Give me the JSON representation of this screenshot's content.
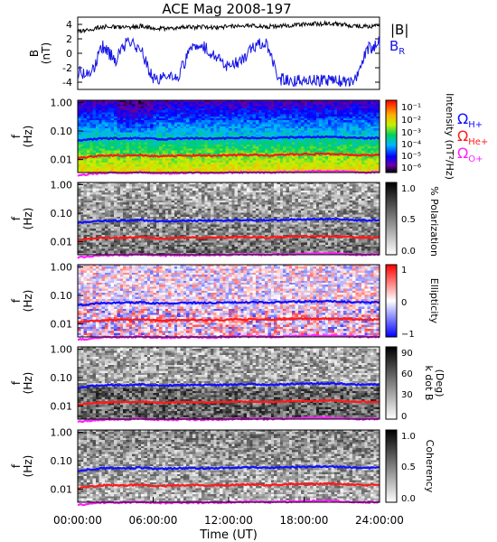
{
  "figure": {
    "title": "ACE Mag 2008-197",
    "xlabel": "Time (UT)",
    "xticks": [
      "00:00:00",
      "06:00:00",
      "12:00:00",
      "18:00:00",
      "24:00:00"
    ],
    "colors": {
      "B": "#000000",
      "BR": "#1414e6",
      "H": "#1010ff",
      "He": "#ff1a1a",
      "O": "#ff20ff"
    }
  },
  "chart_data": [
    {
      "type": "line",
      "panel": "B",
      "ylabel_top": "B",
      "ylabel_bottom": "(nT)",
      "ylim": [
        -5,
        5
      ],
      "yticks": [
        "4",
        "2",
        "0",
        "-2",
        "-4"
      ],
      "legend": {
        "B": "|B|",
        "BR": "B",
        "BR_sub": "R"
      },
      "x_hours": [
        0,
        1,
        2,
        3,
        4,
        5,
        6,
        7,
        8,
        9,
        10,
        11,
        12,
        13,
        14,
        15,
        16,
        17,
        18,
        19,
        20,
        21,
        22,
        23,
        24
      ],
      "series": [
        {
          "name": "|B|",
          "values": [
            3.0,
            3.3,
            3.7,
            3.6,
            3.6,
            3.8,
            3.5,
            3.4,
            3.6,
            3.6,
            3.6,
            3.6,
            3.7,
            3.8,
            3.8,
            3.7,
            3.8,
            3.9,
            4.0,
            4.1,
            4.1,
            4.0,
            3.8,
            3.7,
            3.8
          ]
        },
        {
          "name": "B_R",
          "values": [
            -2.5,
            -3.0,
            1.0,
            -1.0,
            2.0,
            0.5,
            -3.5,
            -3.5,
            -3.0,
            0.5,
            1.0,
            -0.5,
            -2.0,
            -1.0,
            1.0,
            1.5,
            -3.5,
            -3.8,
            -3.8,
            -3.8,
            -3.9,
            -3.9,
            -4.0,
            0.5,
            1.5
          ]
        }
      ]
    },
    {
      "type": "heatmap",
      "panel": "power-spectrum",
      "ylabel_top": "f",
      "ylabel_bottom": "(Hz)",
      "yscale": "log",
      "yticks": [
        "1.00",
        "0.10",
        "0.01"
      ],
      "colorbar": {
        "label": "Intensity (nT²/Hz)",
        "ticks": [
          "10⁻¹",
          "10⁻²",
          "10⁻³",
          "10⁻⁴",
          "10⁻⁵",
          "10⁻⁶"
        ]
      },
      "legend": [
        {
          "key": "H",
          "symbol": "Ω",
          "sub": "H+"
        },
        {
          "key": "He",
          "symbol": "Ω",
          "sub": "He+"
        },
        {
          "key": "O",
          "symbol": "Ω",
          "sub": "O+"
        }
      ]
    },
    {
      "type": "heatmap",
      "panel": "polarization",
      "ylabel_top": "f",
      "ylabel_bottom": "(Hz)",
      "yscale": "log",
      "yticks": [
        "1.00",
        "0.10",
        "0.01"
      ],
      "colorbar": {
        "label": "% Polarization",
        "ticks": [
          "1.0",
          "0.5",
          "0.0"
        ]
      }
    },
    {
      "type": "heatmap",
      "panel": "ellipticity",
      "ylabel_top": "f",
      "ylabel_bottom": "(Hz)",
      "yscale": "log",
      "yticks": [
        "1.00",
        "0.10",
        "0.01"
      ],
      "colorbar": {
        "label": "Ellipticity",
        "ticks": [
          "1",
          "0",
          "−1"
        ]
      }
    },
    {
      "type": "heatmap",
      "panel": "k-dot-b",
      "ylabel_top": "f",
      "ylabel_bottom": "(Hz)",
      "yscale": "log",
      "yticks": [
        "1.00",
        "0.10",
        "0.01"
      ],
      "colorbar": {
        "label": "k dot B",
        "label2": "(Deg)",
        "ticks": [
          "90",
          "60",
          "30",
          "0"
        ]
      }
    },
    {
      "type": "heatmap",
      "panel": "coherency",
      "ylabel_top": "f",
      "ylabel_bottom": "(Hz)",
      "yscale": "log",
      "yticks": [
        "1.00",
        "0.10",
        "0.01"
      ],
      "colorbar": {
        "label": "Coherency",
        "ticks": [
          "1.0",
          "0.5",
          "0.0"
        ]
      }
    },
    {
      "type": "line",
      "panel": "gyrofrequencies",
      "x_hours": [
        0,
        1,
        2,
        3,
        4,
        5,
        6,
        7,
        8,
        9,
        10,
        11,
        12,
        13,
        14,
        15,
        16,
        17,
        18,
        19,
        20,
        21,
        22,
        23,
        24
      ],
      "series": [
        {
          "name": "H+",
          "values": [
            0.045,
            0.05,
            0.055,
            0.055,
            0.055,
            0.057,
            0.053,
            0.052,
            0.055,
            0.055,
            0.055,
            0.055,
            0.056,
            0.058,
            0.058,
            0.056,
            0.058,
            0.06,
            0.061,
            0.062,
            0.062,
            0.061,
            0.058,
            0.056,
            0.058
          ]
        },
        {
          "name": "He+",
          "values": [
            0.011,
            0.0125,
            0.0138,
            0.0138,
            0.0138,
            0.0143,
            0.0133,
            0.013,
            0.0138,
            0.0138,
            0.0138,
            0.0138,
            0.014,
            0.0145,
            0.0145,
            0.014,
            0.0145,
            0.015,
            0.0153,
            0.0155,
            0.0155,
            0.0153,
            0.0145,
            0.014,
            0.0145
          ]
        },
        {
          "name": "O+",
          "values": [
            0.0028,
            0.0031,
            0.0034,
            0.0034,
            0.0034,
            0.0036,
            0.0033,
            0.0033,
            0.0034,
            0.0034,
            0.0034,
            0.0034,
            0.0035,
            0.0036,
            0.0036,
            0.0035,
            0.0036,
            0.0037,
            0.0038,
            0.0039,
            0.0039,
            0.0038,
            0.0036,
            0.0035,
            0.0036
          ]
        }
      ]
    }
  ]
}
